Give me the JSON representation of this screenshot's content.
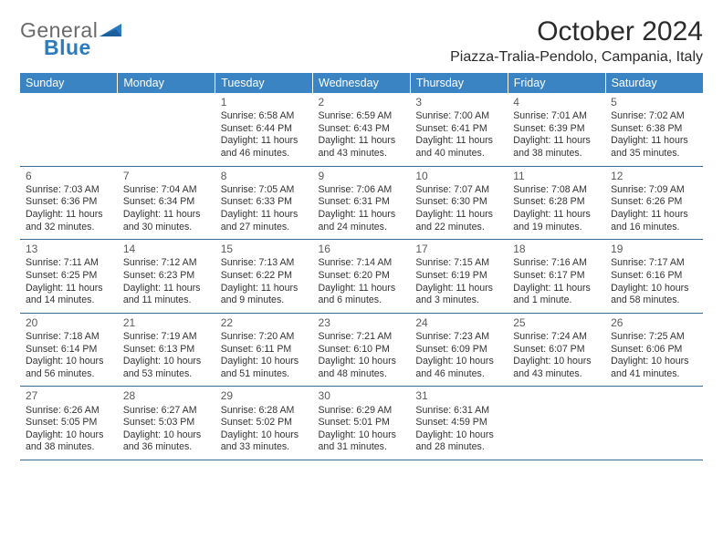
{
  "logo": {
    "word1": "General",
    "word2": "Blue"
  },
  "title": "October 2024",
  "location": "Piazza-Tralia-Pendolo, Campania, Italy",
  "colors": {
    "header_bg": "#3a84c4",
    "header_fg": "#ffffff",
    "rule": "#3a6a94",
    "text": "#333333",
    "logo_gray": "#6a6a6a",
    "logo_blue": "#2b7bbf"
  },
  "daynames": [
    "Sunday",
    "Monday",
    "Tuesday",
    "Wednesday",
    "Thursday",
    "Friday",
    "Saturday"
  ],
  "weeks": [
    [
      null,
      null,
      {
        "n": "1",
        "sr": "Sunrise: 6:58 AM",
        "ss": "Sunset: 6:44 PM",
        "d1": "Daylight: 11 hours",
        "d2": "and 46 minutes."
      },
      {
        "n": "2",
        "sr": "Sunrise: 6:59 AM",
        "ss": "Sunset: 6:43 PM",
        "d1": "Daylight: 11 hours",
        "d2": "and 43 minutes."
      },
      {
        "n": "3",
        "sr": "Sunrise: 7:00 AM",
        "ss": "Sunset: 6:41 PM",
        "d1": "Daylight: 11 hours",
        "d2": "and 40 minutes."
      },
      {
        "n": "4",
        "sr": "Sunrise: 7:01 AM",
        "ss": "Sunset: 6:39 PM",
        "d1": "Daylight: 11 hours",
        "d2": "and 38 minutes."
      },
      {
        "n": "5",
        "sr": "Sunrise: 7:02 AM",
        "ss": "Sunset: 6:38 PM",
        "d1": "Daylight: 11 hours",
        "d2": "and 35 minutes."
      }
    ],
    [
      {
        "n": "6",
        "sr": "Sunrise: 7:03 AM",
        "ss": "Sunset: 6:36 PM",
        "d1": "Daylight: 11 hours",
        "d2": "and 32 minutes."
      },
      {
        "n": "7",
        "sr": "Sunrise: 7:04 AM",
        "ss": "Sunset: 6:34 PM",
        "d1": "Daylight: 11 hours",
        "d2": "and 30 minutes."
      },
      {
        "n": "8",
        "sr": "Sunrise: 7:05 AM",
        "ss": "Sunset: 6:33 PM",
        "d1": "Daylight: 11 hours",
        "d2": "and 27 minutes."
      },
      {
        "n": "9",
        "sr": "Sunrise: 7:06 AM",
        "ss": "Sunset: 6:31 PM",
        "d1": "Daylight: 11 hours",
        "d2": "and 24 minutes."
      },
      {
        "n": "10",
        "sr": "Sunrise: 7:07 AM",
        "ss": "Sunset: 6:30 PM",
        "d1": "Daylight: 11 hours",
        "d2": "and 22 minutes."
      },
      {
        "n": "11",
        "sr": "Sunrise: 7:08 AM",
        "ss": "Sunset: 6:28 PM",
        "d1": "Daylight: 11 hours",
        "d2": "and 19 minutes."
      },
      {
        "n": "12",
        "sr": "Sunrise: 7:09 AM",
        "ss": "Sunset: 6:26 PM",
        "d1": "Daylight: 11 hours",
        "d2": "and 16 minutes."
      }
    ],
    [
      {
        "n": "13",
        "sr": "Sunrise: 7:11 AM",
        "ss": "Sunset: 6:25 PM",
        "d1": "Daylight: 11 hours",
        "d2": "and 14 minutes."
      },
      {
        "n": "14",
        "sr": "Sunrise: 7:12 AM",
        "ss": "Sunset: 6:23 PM",
        "d1": "Daylight: 11 hours",
        "d2": "and 11 minutes."
      },
      {
        "n": "15",
        "sr": "Sunrise: 7:13 AM",
        "ss": "Sunset: 6:22 PM",
        "d1": "Daylight: 11 hours",
        "d2": "and 9 minutes."
      },
      {
        "n": "16",
        "sr": "Sunrise: 7:14 AM",
        "ss": "Sunset: 6:20 PM",
        "d1": "Daylight: 11 hours",
        "d2": "and 6 minutes."
      },
      {
        "n": "17",
        "sr": "Sunrise: 7:15 AM",
        "ss": "Sunset: 6:19 PM",
        "d1": "Daylight: 11 hours",
        "d2": "and 3 minutes."
      },
      {
        "n": "18",
        "sr": "Sunrise: 7:16 AM",
        "ss": "Sunset: 6:17 PM",
        "d1": "Daylight: 11 hours",
        "d2": "and 1 minute."
      },
      {
        "n": "19",
        "sr": "Sunrise: 7:17 AM",
        "ss": "Sunset: 6:16 PM",
        "d1": "Daylight: 10 hours",
        "d2": "and 58 minutes."
      }
    ],
    [
      {
        "n": "20",
        "sr": "Sunrise: 7:18 AM",
        "ss": "Sunset: 6:14 PM",
        "d1": "Daylight: 10 hours",
        "d2": "and 56 minutes."
      },
      {
        "n": "21",
        "sr": "Sunrise: 7:19 AM",
        "ss": "Sunset: 6:13 PM",
        "d1": "Daylight: 10 hours",
        "d2": "and 53 minutes."
      },
      {
        "n": "22",
        "sr": "Sunrise: 7:20 AM",
        "ss": "Sunset: 6:11 PM",
        "d1": "Daylight: 10 hours",
        "d2": "and 51 minutes."
      },
      {
        "n": "23",
        "sr": "Sunrise: 7:21 AM",
        "ss": "Sunset: 6:10 PM",
        "d1": "Daylight: 10 hours",
        "d2": "and 48 minutes."
      },
      {
        "n": "24",
        "sr": "Sunrise: 7:23 AM",
        "ss": "Sunset: 6:09 PM",
        "d1": "Daylight: 10 hours",
        "d2": "and 46 minutes."
      },
      {
        "n": "25",
        "sr": "Sunrise: 7:24 AM",
        "ss": "Sunset: 6:07 PM",
        "d1": "Daylight: 10 hours",
        "d2": "and 43 minutes."
      },
      {
        "n": "26",
        "sr": "Sunrise: 7:25 AM",
        "ss": "Sunset: 6:06 PM",
        "d1": "Daylight: 10 hours",
        "d2": "and 41 minutes."
      }
    ],
    [
      {
        "n": "27",
        "sr": "Sunrise: 6:26 AM",
        "ss": "Sunset: 5:05 PM",
        "d1": "Daylight: 10 hours",
        "d2": "and 38 minutes."
      },
      {
        "n": "28",
        "sr": "Sunrise: 6:27 AM",
        "ss": "Sunset: 5:03 PM",
        "d1": "Daylight: 10 hours",
        "d2": "and 36 minutes."
      },
      {
        "n": "29",
        "sr": "Sunrise: 6:28 AM",
        "ss": "Sunset: 5:02 PM",
        "d1": "Daylight: 10 hours",
        "d2": "and 33 minutes."
      },
      {
        "n": "30",
        "sr": "Sunrise: 6:29 AM",
        "ss": "Sunset: 5:01 PM",
        "d1": "Daylight: 10 hours",
        "d2": "and 31 minutes."
      },
      {
        "n": "31",
        "sr": "Sunrise: 6:31 AM",
        "ss": "Sunset: 4:59 PM",
        "d1": "Daylight: 10 hours",
        "d2": "and 28 minutes."
      },
      null,
      null
    ]
  ]
}
